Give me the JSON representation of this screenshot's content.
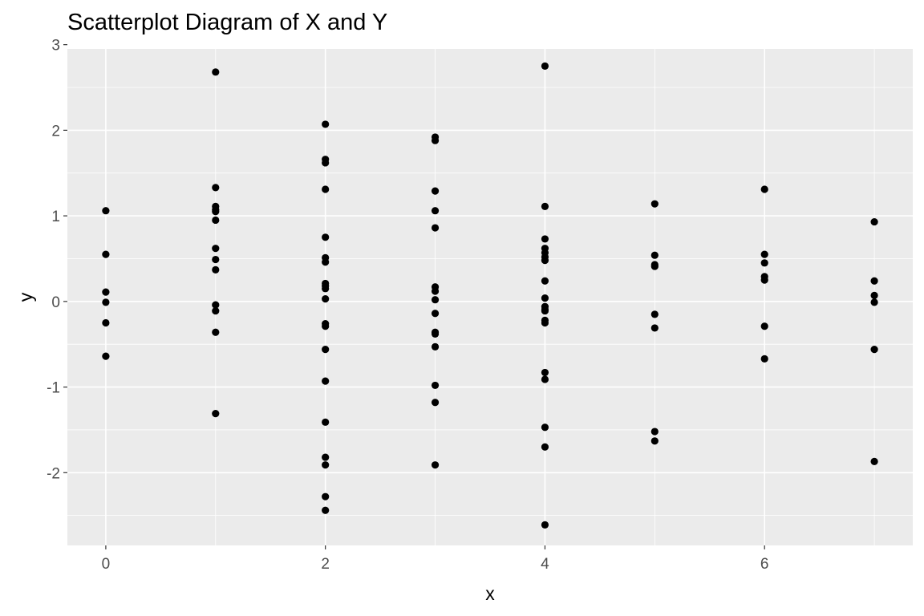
{
  "chart_data": {
    "type": "scatter",
    "title": "Scatterplot Diagram of X and Y",
    "xlabel": "x",
    "ylabel": "y",
    "xlim": [
      -0.35,
      7.35
    ],
    "ylim": [
      -2.85,
      2.95
    ],
    "xticks": [
      0,
      2,
      4,
      6
    ],
    "yticks": [
      -2,
      -1,
      0,
      1,
      2,
      3
    ],
    "xtick_labels": [
      "0",
      "2",
      "4",
      "6"
    ],
    "ytick_labels": [
      "-2",
      "-1",
      "0",
      "1",
      "2",
      "3"
    ],
    "grid": true,
    "colors": {
      "panel": "#ebebeb",
      "grid": "#ffffff",
      "point": "#000000",
      "tick": "#4d4d4d"
    },
    "points": [
      {
        "x": 0,
        "y": 1.06
      },
      {
        "x": 0,
        "y": 0.55
      },
      {
        "x": 0,
        "y": 0.11
      },
      {
        "x": 0,
        "y": -0.01
      },
      {
        "x": 0,
        "y": -0.25
      },
      {
        "x": 0,
        "y": -0.64
      },
      {
        "x": 1,
        "y": 2.68
      },
      {
        "x": 1,
        "y": 1.33
      },
      {
        "x": 1,
        "y": 1.11
      },
      {
        "x": 1,
        "y": 1.07
      },
      {
        "x": 1,
        "y": 1.05
      },
      {
        "x": 1,
        "y": 0.95
      },
      {
        "x": 1,
        "y": 0.62
      },
      {
        "x": 1,
        "y": 0.49
      },
      {
        "x": 1,
        "y": 0.37
      },
      {
        "x": 1,
        "y": -0.04
      },
      {
        "x": 1,
        "y": -0.11
      },
      {
        "x": 1,
        "y": -0.36
      },
      {
        "x": 1,
        "y": -1.31
      },
      {
        "x": 2,
        "y": 2.07
      },
      {
        "x": 2,
        "y": 1.66
      },
      {
        "x": 2,
        "y": 1.62
      },
      {
        "x": 2,
        "y": 1.31
      },
      {
        "x": 2,
        "y": 0.75
      },
      {
        "x": 2,
        "y": 0.51
      },
      {
        "x": 2,
        "y": 0.46
      },
      {
        "x": 2,
        "y": 0.21
      },
      {
        "x": 2,
        "y": 0.18
      },
      {
        "x": 2,
        "y": 0.15
      },
      {
        "x": 2,
        "y": 0.03
      },
      {
        "x": 2,
        "y": -0.26
      },
      {
        "x": 2,
        "y": -0.29
      },
      {
        "x": 2,
        "y": -0.56
      },
      {
        "x": 2,
        "y": -0.93
      },
      {
        "x": 2,
        "y": -1.41
      },
      {
        "x": 2,
        "y": -1.82
      },
      {
        "x": 2,
        "y": -1.91
      },
      {
        "x": 2,
        "y": -2.28
      },
      {
        "x": 2,
        "y": -2.44
      },
      {
        "x": 3,
        "y": 1.92
      },
      {
        "x": 3,
        "y": 1.88
      },
      {
        "x": 3,
        "y": 1.29
      },
      {
        "x": 3,
        "y": 1.06
      },
      {
        "x": 3,
        "y": 0.86
      },
      {
        "x": 3,
        "y": 0.17
      },
      {
        "x": 3,
        "y": 0.12
      },
      {
        "x": 3,
        "y": 0.02
      },
      {
        "x": 3,
        "y": -0.14
      },
      {
        "x": 3,
        "y": -0.36
      },
      {
        "x": 3,
        "y": -0.38
      },
      {
        "x": 3,
        "y": -0.53
      },
      {
        "x": 3,
        "y": -0.98
      },
      {
        "x": 3,
        "y": -1.18
      },
      {
        "x": 3,
        "y": -1.91
      },
      {
        "x": 4,
        "y": 2.75
      },
      {
        "x": 4,
        "y": 1.11
      },
      {
        "x": 4,
        "y": 0.73
      },
      {
        "x": 4,
        "y": 0.62
      },
      {
        "x": 4,
        "y": 0.57
      },
      {
        "x": 4,
        "y": 0.52
      },
      {
        "x": 4,
        "y": 0.48
      },
      {
        "x": 4,
        "y": 0.24
      },
      {
        "x": 4,
        "y": 0.04
      },
      {
        "x": 4,
        "y": -0.06
      },
      {
        "x": 4,
        "y": -0.09
      },
      {
        "x": 4,
        "y": -0.11
      },
      {
        "x": 4,
        "y": -0.22
      },
      {
        "x": 4,
        "y": -0.25
      },
      {
        "x": 4,
        "y": -0.83
      },
      {
        "x": 4,
        "y": -0.91
      },
      {
        "x": 4,
        "y": -1.47
      },
      {
        "x": 4,
        "y": -1.7
      },
      {
        "x": 4,
        "y": -2.61
      },
      {
        "x": 5,
        "y": 1.14
      },
      {
        "x": 5,
        "y": 0.54
      },
      {
        "x": 5,
        "y": 0.43
      },
      {
        "x": 5,
        "y": 0.41
      },
      {
        "x": 5,
        "y": -0.15
      },
      {
        "x": 5,
        "y": -0.31
      },
      {
        "x": 5,
        "y": -1.52
      },
      {
        "x": 5,
        "y": -1.63
      },
      {
        "x": 6,
        "y": 1.31
      },
      {
        "x": 6,
        "y": 0.55
      },
      {
        "x": 6,
        "y": 0.45
      },
      {
        "x": 6,
        "y": 0.29
      },
      {
        "x": 6,
        "y": 0.25
      },
      {
        "x": 6,
        "y": -0.29
      },
      {
        "x": 6,
        "y": -0.67
      },
      {
        "x": 7,
        "y": 0.93
      },
      {
        "x": 7,
        "y": 0.24
      },
      {
        "x": 7,
        "y": 0.07
      },
      {
        "x": 7,
        "y": -0.01
      },
      {
        "x": 7,
        "y": -0.56
      },
      {
        "x": 7,
        "y": -1.87
      }
    ]
  }
}
